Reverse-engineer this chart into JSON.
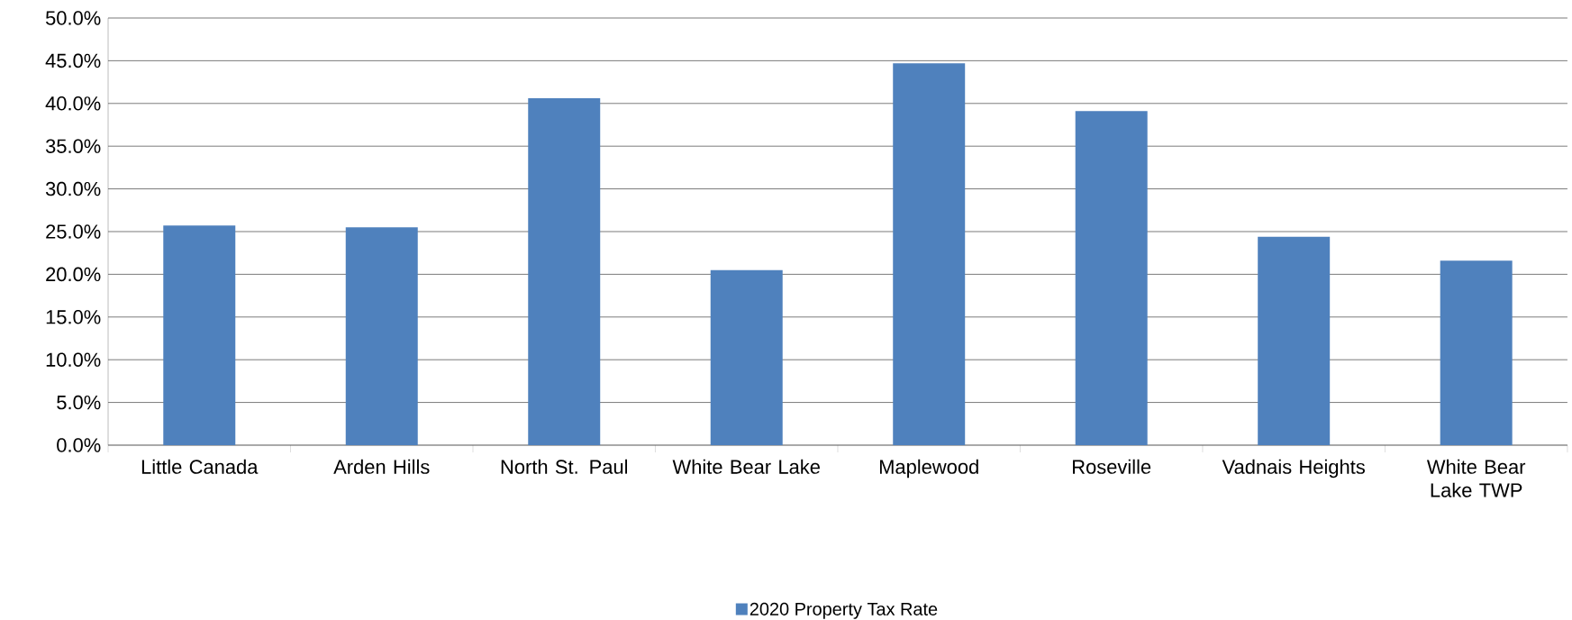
{
  "chart_data": {
    "type": "bar",
    "categories": [
      "Little Canada",
      "Arden Hills",
      "North St. Paul",
      "White Bear Lake",
      "Maplewood",
      "Roseville",
      "Vadnais Heights",
      "White Bear Lake TWP"
    ],
    "series": [
      {
        "name": "2020 Property Tax Rate",
        "color": "#4f81bd",
        "values": [
          25.7,
          25.5,
          40.6,
          20.5,
          44.7,
          39.1,
          24.4,
          21.6
        ]
      }
    ],
    "ylim": [
      0,
      50
    ],
    "yticks": [
      {
        "value": 0,
        "label": "0.0%"
      },
      {
        "value": 5,
        "label": "5.0%"
      },
      {
        "value": 10,
        "label": "10.0%"
      },
      {
        "value": 15,
        "label": "15.0%"
      },
      {
        "value": 20,
        "label": "20.0%"
      },
      {
        "value": 25,
        "label": "25.0%"
      },
      {
        "value": 30,
        "label": "30.0%"
      },
      {
        "value": 35,
        "label": "35.0%"
      },
      {
        "value": 40,
        "label": "40.0%"
      },
      {
        "value": 45,
        "label": "45.0%"
      },
      {
        "value": 50,
        "label": "50.0%"
      }
    ],
    "grid": "y",
    "legend": "bottom"
  }
}
